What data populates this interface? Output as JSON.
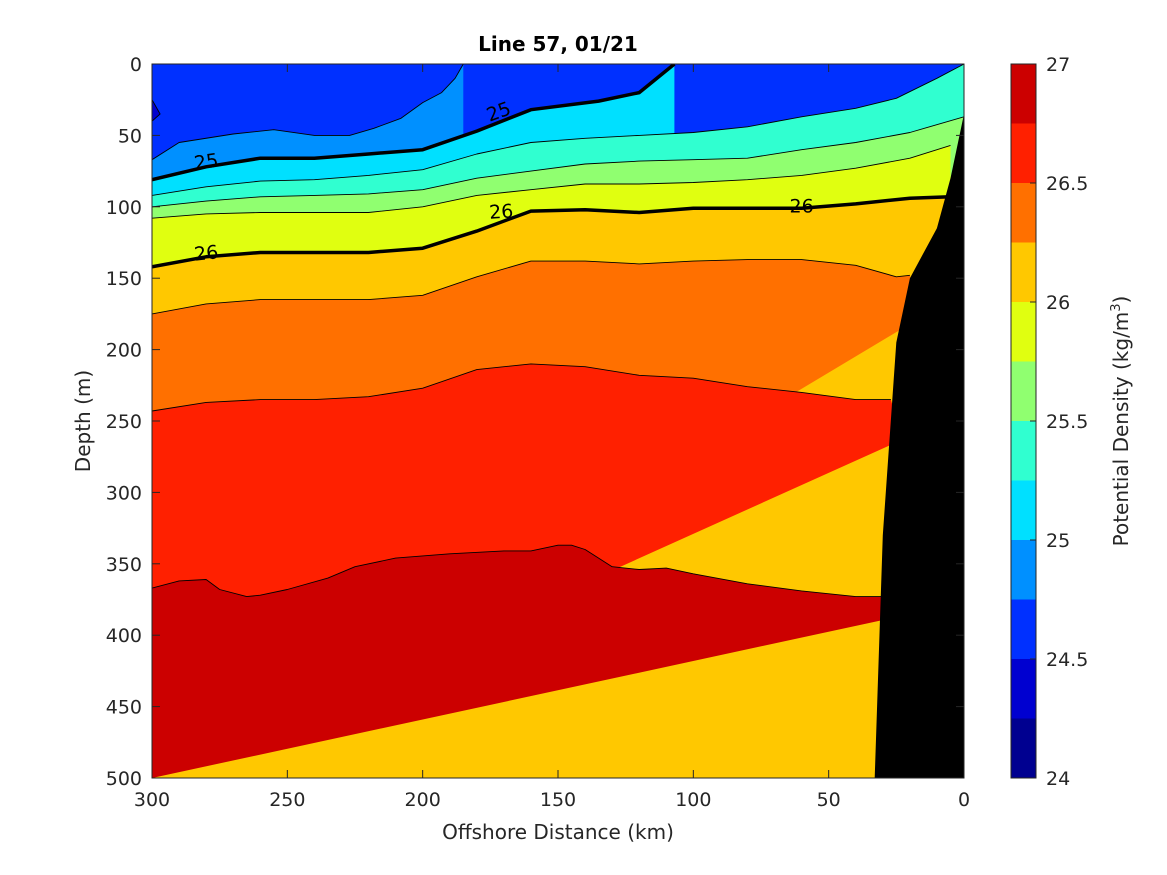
{
  "chart_data": {
    "type": "filled-contour",
    "title": "Line 57, 01/21",
    "xlabel": "Offshore Distance (km)",
    "ylabel": "Depth (m)",
    "xlim": [
      300,
      0
    ],
    "ylim": [
      500,
      0
    ],
    "x_reversed": true,
    "y_reversed": true,
    "xticks": [
      "300",
      "250",
      "200",
      "150",
      "100",
      "50",
      "0"
    ],
    "yticks": [
      "0",
      "50",
      "100",
      "150",
      "200",
      "250",
      "300",
      "350",
      "400",
      "450",
      "500"
    ],
    "colorbar": {
      "label": "Potential Density (kg/m",
      "label_sup": "3",
      "label_end": ")",
      "range": [
        24,
        27
      ],
      "ticks": [
        "24",
        "24.5",
        "25",
        "25.5",
        "26",
        "26.5",
        "27"
      ],
      "levels": [
        24.0,
        24.25,
        24.5,
        24.75,
        25.0,
        25.25,
        25.5,
        25.75,
        26.0,
        26.25,
        26.5,
        26.75,
        27.0
      ],
      "colors": [
        "#000090",
        "#0000d0",
        "#0030ff",
        "#0090ff",
        "#00e0ff",
        "#30ffd0",
        "#90ff70",
        "#e0ff10",
        "#ffc800",
        "#ff7000",
        "#ff2000",
        "#cc0000"
      ]
    },
    "contour_lines": [
      {
        "level": 24.5,
        "bold": false,
        "points": [
          [
            300,
            0
          ],
          [
            300,
            25
          ],
          [
            297,
            35
          ],
          [
            300,
            40
          ]
        ]
      },
      {
        "level": 24.75,
        "bold": false,
        "points": [
          [
            300,
            67
          ],
          [
            290,
            55
          ],
          [
            270,
            49
          ],
          [
            255,
            46
          ],
          [
            240,
            50
          ],
          [
            227,
            50
          ],
          [
            218,
            45
          ],
          [
            208,
            38
          ],
          [
            200,
            27
          ],
          [
            193,
            20
          ],
          [
            188,
            10
          ],
          [
            185,
            0
          ]
        ]
      },
      {
        "level": 25.0,
        "bold": true,
        "label": "25",
        "points": [
          [
            300,
            81
          ],
          [
            280,
            72
          ],
          [
            260,
            66
          ],
          [
            240,
            66
          ],
          [
            220,
            63
          ],
          [
            200,
            60
          ],
          [
            180,
            47
          ],
          [
            160,
            32
          ],
          [
            135,
            26
          ],
          [
            120,
            20
          ],
          [
            107,
            0
          ]
        ]
      },
      {
        "level": 25.25,
        "bold": false,
        "points": [
          [
            300,
            92
          ],
          [
            280,
            86
          ],
          [
            260,
            82
          ],
          [
            240,
            81
          ],
          [
            220,
            78
          ],
          [
            200,
            74
          ],
          [
            180,
            63
          ],
          [
            160,
            55
          ],
          [
            140,
            52
          ],
          [
            120,
            50
          ],
          [
            100,
            48
          ],
          [
            80,
            44
          ],
          [
            60,
            37
          ],
          [
            40,
            31
          ],
          [
            25,
            24
          ],
          [
            10,
            10
          ],
          [
            0,
            0
          ]
        ]
      },
      {
        "level": 25.5,
        "bold": false,
        "points": [
          [
            300,
            100
          ],
          [
            280,
            96
          ],
          [
            260,
            93
          ],
          [
            240,
            92
          ],
          [
            220,
            91
          ],
          [
            200,
            88
          ],
          [
            180,
            80
          ],
          [
            160,
            75
          ],
          [
            140,
            70
          ],
          [
            120,
            68
          ],
          [
            100,
            67
          ],
          [
            80,
            66
          ],
          [
            60,
            60
          ],
          [
            40,
            55
          ],
          [
            20,
            48
          ],
          [
            0,
            37
          ]
        ]
      },
      {
        "level": 25.75,
        "bold": false,
        "points": [
          [
            300,
            108
          ],
          [
            280,
            105
          ],
          [
            260,
            104
          ],
          [
            240,
            104
          ],
          [
            220,
            104
          ],
          [
            200,
            100
          ],
          [
            180,
            92
          ],
          [
            160,
            88
          ],
          [
            140,
            84
          ],
          [
            120,
            84
          ],
          [
            100,
            83
          ],
          [
            80,
            81
          ],
          [
            60,
            78
          ],
          [
            40,
            73
          ],
          [
            20,
            66
          ],
          [
            5,
            57
          ]
        ]
      },
      {
        "level": 26.0,
        "bold": true,
        "label": "26",
        "points": [
          [
            300,
            142
          ],
          [
            280,
            135
          ],
          [
            260,
            132
          ],
          [
            240,
            132
          ],
          [
            220,
            132
          ],
          [
            200,
            129
          ],
          [
            180,
            117
          ],
          [
            160,
            103
          ],
          [
            140,
            102
          ],
          [
            120,
            104
          ],
          [
            100,
            101
          ],
          [
            80,
            101
          ],
          [
            60,
            101
          ],
          [
            40,
            98
          ],
          [
            20,
            94
          ],
          [
            5,
            93
          ]
        ]
      },
      {
        "level": 26.25,
        "bold": false,
        "points": [
          [
            300,
            175
          ],
          [
            280,
            168
          ],
          [
            260,
            165
          ],
          [
            240,
            165
          ],
          [
            220,
            165
          ],
          [
            200,
            162
          ],
          [
            180,
            149
          ],
          [
            160,
            138
          ],
          [
            140,
            138
          ],
          [
            120,
            140
          ],
          [
            100,
            138
          ],
          [
            80,
            137
          ],
          [
            60,
            137
          ],
          [
            40,
            141
          ],
          [
            25,
            149
          ],
          [
            20,
            148
          ]
        ]
      },
      {
        "level": 26.5,
        "bold": false,
        "points": [
          [
            300,
            243
          ],
          [
            280,
            237
          ],
          [
            260,
            235
          ],
          [
            240,
            235
          ],
          [
            220,
            233
          ],
          [
            200,
            227
          ],
          [
            180,
            214
          ],
          [
            160,
            210
          ],
          [
            140,
            212
          ],
          [
            120,
            218
          ],
          [
            100,
            220
          ],
          [
            80,
            226
          ],
          [
            60,
            230
          ],
          [
            40,
            235
          ],
          [
            27,
            235
          ]
        ]
      },
      {
        "level": 26.75,
        "bold": false,
        "points": [
          [
            300,
            367
          ],
          [
            290,
            362
          ],
          [
            280,
            361
          ],
          [
            275,
            368
          ],
          [
            265,
            373
          ],
          [
            260,
            372
          ],
          [
            250,
            368
          ],
          [
            235,
            360
          ],
          [
            225,
            352
          ],
          [
            210,
            346
          ],
          [
            190,
            343
          ],
          [
            170,
            341
          ],
          [
            160,
            341
          ],
          [
            150,
            337
          ],
          [
            145,
            337
          ],
          [
            140,
            340
          ],
          [
            130,
            352
          ],
          [
            120,
            354
          ],
          [
            110,
            353
          ],
          [
            100,
            357
          ],
          [
            80,
            364
          ],
          [
            60,
            369
          ],
          [
            40,
            373
          ],
          [
            30,
            373
          ]
        ]
      }
    ],
    "contour_labels": [
      {
        "text": "25",
        "x": 280,
        "y": 68,
        "angle": -8
      },
      {
        "text": "25",
        "x": 172,
        "y": 33,
        "angle": -20
      },
      {
        "text": "26",
        "x": 280,
        "y": 132,
        "angle": -6
      },
      {
        "text": "26",
        "x": 171,
        "y": 103,
        "angle": -4
      },
      {
        "text": "26",
        "x": 60,
        "y": 99,
        "angle": 0
      }
    ],
    "bathymetry": {
      "color": "#000000",
      "points": [
        [
          0,
          35
        ],
        [
          5,
          80
        ],
        [
          10,
          115
        ],
        [
          20,
          150
        ],
        [
          25,
          195
        ],
        [
          30,
          330
        ],
        [
          33,
          500
        ],
        [
          0,
          500
        ]
      ]
    }
  }
}
